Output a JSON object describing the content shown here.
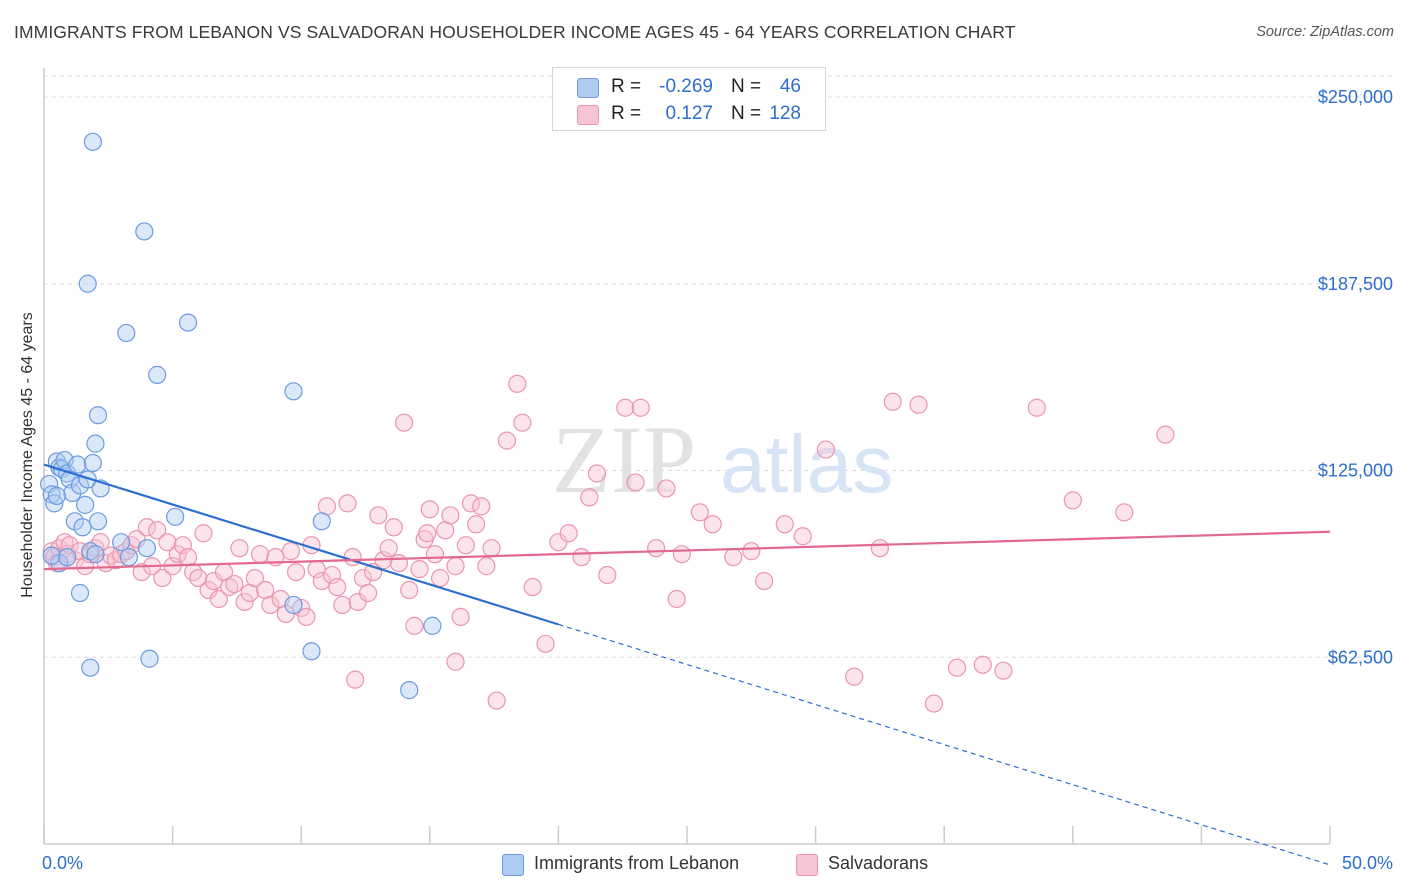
{
  "title": "IMMIGRANTS FROM LEBANON VS SALVADORAN HOUSEHOLDER INCOME AGES 45 - 64 YEARS CORRELATION CHART",
  "source": "Source: ZipAtlas.com",
  "watermark": {
    "zip": "ZIP",
    "atlas": "atlas"
  },
  "colors": {
    "blue": "#2c6fce",
    "blue_fill": "#aecbf2",
    "blue_stroke": "#6c9be0",
    "pink": "#e2698f",
    "pink_fill": "#f7c4d3",
    "pink_stroke": "#ec94b0",
    "axis_text": "#2c6fce",
    "grid": "#dddddd"
  },
  "legend_top": {
    "rows": [
      {
        "r_label": "R =",
        "r_value": "-0.269",
        "n_label": "N =",
        "n_value": "46",
        "color": "blue"
      },
      {
        "r_label": "R =",
        "r_value": "0.127",
        "n_label": "N =",
        "n_value": "128",
        "color": "pink"
      }
    ]
  },
  "legend_bottom": {
    "items": [
      {
        "label": "Immigrants from Lebanon",
        "color": "blue"
      },
      {
        "label": "Salvadorans",
        "color": "pink"
      }
    ]
  },
  "chart_data": {
    "type": "scatter",
    "title": "IMMIGRANTS FROM LEBANON VS SALVADORAN HOUSEHOLDER INCOME AGES 45 - 64 YEARS CORRELATION CHART",
    "xlabel": "",
    "ylabel": "Householder Income Ages 45 - 64 years",
    "xlim": [
      0,
      50
    ],
    "ylim": [
      0,
      250000
    ],
    "x_tick_labels": [
      "0.0%",
      "50.0%"
    ],
    "y_ticks": [
      62500,
      125000,
      187500,
      250000
    ],
    "y_tick_labels": [
      "$62,500",
      "$125,000",
      "$187,500",
      "$250,000"
    ],
    "grid": "horizontal dashed",
    "legend_position": "top-center",
    "series": [
      {
        "name": "Immigrants from Lebanon",
        "color": "blue",
        "R": -0.269,
        "N": 46,
        "trend": {
          "x0": 0,
          "y0": 127000,
          "x1": 20,
          "y1": 73500,
          "dashed_to_x": 50,
          "dashed_to_y": -7000
        },
        "points": [
          [
            0.2,
            120500
          ],
          [
            0.3,
            117000
          ],
          [
            0.4,
            114000
          ],
          [
            0.5,
            128000
          ],
          [
            0.6,
            126000
          ],
          [
            0.7,
            125500
          ],
          [
            0.8,
            128500
          ],
          [
            0.9,
            124000
          ],
          [
            1.0,
            122000
          ],
          [
            1.1,
            117500
          ],
          [
            1.2,
            108000
          ],
          [
            1.3,
            127000
          ],
          [
            1.4,
            120000
          ],
          [
            1.5,
            106000
          ],
          [
            1.6,
            113500
          ],
          [
            1.7,
            122000
          ],
          [
            1.8,
            98000
          ],
          [
            1.9,
            127500
          ],
          [
            2.0,
            97000
          ],
          [
            2.1,
            108000
          ],
          [
            2.2,
            119000
          ],
          [
            1.4,
            84000
          ],
          [
            1.7,
            187500
          ],
          [
            1.8,
            59000
          ],
          [
            1.9,
            235000
          ],
          [
            2.1,
            143500
          ],
          [
            2.0,
            134000
          ],
          [
            3.0,
            101000
          ],
          [
            3.3,
            96000
          ],
          [
            3.2,
            171000
          ],
          [
            3.9,
            205000
          ],
          [
            4.0,
            99000
          ],
          [
            4.1,
            62000
          ],
          [
            4.4,
            157000
          ],
          [
            5.1,
            109500
          ],
          [
            5.6,
            174500
          ],
          [
            0.6,
            94000
          ],
          [
            0.3,
            96500
          ],
          [
            0.9,
            96000
          ],
          [
            9.7,
            151500
          ],
          [
            9.7,
            80000
          ],
          [
            10.4,
            64500
          ],
          [
            10.8,
            108000
          ],
          [
            14.2,
            51500
          ],
          [
            15.1,
            73000
          ],
          [
            0.5,
            116500
          ]
        ]
      },
      {
        "name": "Salvadorans",
        "color": "pink",
        "R": 0.127,
        "N": 128,
        "trend": {
          "x0": 0,
          "y0": 92000,
          "x1": 50,
          "y1": 104500
        },
        "points": [
          [
            0.3,
            98000
          ],
          [
            0.4,
            96000
          ],
          [
            0.5,
            94000
          ],
          [
            0.6,
            99000
          ],
          [
            0.8,
            101000
          ],
          [
            0.9,
            97000
          ],
          [
            1.0,
            100000
          ],
          [
            1.2,
            95000
          ],
          [
            1.4,
            98000
          ],
          [
            1.6,
            93000
          ],
          [
            1.8,
            97000
          ],
          [
            2.0,
            99000
          ],
          [
            2.2,
            101000
          ],
          [
            2.4,
            94000
          ],
          [
            2.6,
            96500
          ],
          [
            2.8,
            95000
          ],
          [
            3.0,
            97000
          ],
          [
            3.2,
            98000
          ],
          [
            3.4,
            100000
          ],
          [
            3.6,
            102000
          ],
          [
            3.8,
            91000
          ],
          [
            4.0,
            106000
          ],
          [
            4.2,
            93000
          ],
          [
            4.4,
            105000
          ],
          [
            4.6,
            89000
          ],
          [
            4.8,
            101000
          ],
          [
            5.0,
            93000
          ],
          [
            5.2,
            97000
          ],
          [
            5.4,
            100000
          ],
          [
            5.6,
            96000
          ],
          [
            5.8,
            91000
          ],
          [
            6.0,
            89000
          ],
          [
            6.2,
            104000
          ],
          [
            6.4,
            85000
          ],
          [
            6.6,
            88000
          ],
          [
            6.8,
            82000
          ],
          [
            7.0,
            91000
          ],
          [
            7.2,
            86000
          ],
          [
            7.4,
            87000
          ],
          [
            7.6,
            99000
          ],
          [
            7.8,
            81000
          ],
          [
            8.0,
            84000
          ],
          [
            8.2,
            89000
          ],
          [
            8.4,
            97000
          ],
          [
            8.6,
            85000
          ],
          [
            8.8,
            80000
          ],
          [
            9.0,
            96000
          ],
          [
            9.2,
            82000
          ],
          [
            9.4,
            77000
          ],
          [
            9.6,
            98000
          ],
          [
            9.8,
            91000
          ],
          [
            10.0,
            79000
          ],
          [
            10.2,
            76000
          ],
          [
            10.4,
            100000
          ],
          [
            10.6,
            92000
          ],
          [
            10.8,
            88000
          ],
          [
            11.0,
            113000
          ],
          [
            11.2,
            90000
          ],
          [
            11.4,
            86000
          ],
          [
            11.6,
            80000
          ],
          [
            11.8,
            114000
          ],
          [
            12.0,
            96000
          ],
          [
            12.2,
            81000
          ],
          [
            12.4,
            89000
          ],
          [
            12.6,
            84000
          ],
          [
            12.8,
            91000
          ],
          [
            13.0,
            110000
          ],
          [
            13.2,
            95000
          ],
          [
            13.4,
            99000
          ],
          [
            13.6,
            106000
          ],
          [
            13.8,
            94000
          ],
          [
            14.0,
            141000
          ],
          [
            14.2,
            85000
          ],
          [
            14.4,
            73000
          ],
          [
            14.6,
            92000
          ],
          [
            14.8,
            102000
          ],
          [
            15.0,
            112000
          ],
          [
            15.2,
            97000
          ],
          [
            15.4,
            89000
          ],
          [
            15.6,
            105000
          ],
          [
            15.8,
            110000
          ],
          [
            16.0,
            93000
          ],
          [
            16.2,
            76000
          ],
          [
            16.4,
            100000
          ],
          [
            16.6,
            114000
          ],
          [
            16.8,
            107000
          ],
          [
            17.0,
            113000
          ],
          [
            17.2,
            93000
          ],
          [
            17.4,
            99000
          ],
          [
            18.0,
            135000
          ],
          [
            18.4,
            154000
          ],
          [
            18.6,
            141000
          ],
          [
            19.0,
            86000
          ],
          [
            19.5,
            67000
          ],
          [
            20.0,
            101000
          ],
          [
            20.4,
            104000
          ],
          [
            20.9,
            96000
          ],
          [
            21.2,
            116000
          ],
          [
            21.5,
            124000
          ],
          [
            21.9,
            90000
          ],
          [
            22.6,
            146000
          ],
          [
            23.0,
            121000
          ],
          [
            23.2,
            146000
          ],
          [
            23.8,
            99000
          ],
          [
            24.2,
            119000
          ],
          [
            24.8,
            97000
          ],
          [
            25.5,
            111000
          ],
          [
            26.0,
            107000
          ],
          [
            26.8,
            96000
          ],
          [
            27.5,
            98000
          ],
          [
            28.0,
            88000
          ],
          [
            28.8,
            107000
          ],
          [
            29.5,
            103000
          ],
          [
            31.5,
            56000
          ],
          [
            32.5,
            99000
          ],
          [
            34.6,
            47000
          ],
          [
            35.5,
            59000
          ],
          [
            36.5,
            60000
          ],
          [
            37.3,
            58000
          ],
          [
            38.6,
            146000
          ],
          [
            40.0,
            115000
          ],
          [
            42.0,
            111000
          ],
          [
            43.6,
            137000
          ],
          [
            34.0,
            147000
          ],
          [
            33.0,
            148000
          ],
          [
            30.4,
            132000
          ],
          [
            24.6,
            82000
          ],
          [
            16.0,
            61000
          ],
          [
            17.6,
            48000
          ],
          [
            12.1,
            55000
          ],
          [
            14.9,
            104000
          ]
        ]
      }
    ]
  },
  "y_axis_label": "Householder Income Ages 45 - 64 years"
}
